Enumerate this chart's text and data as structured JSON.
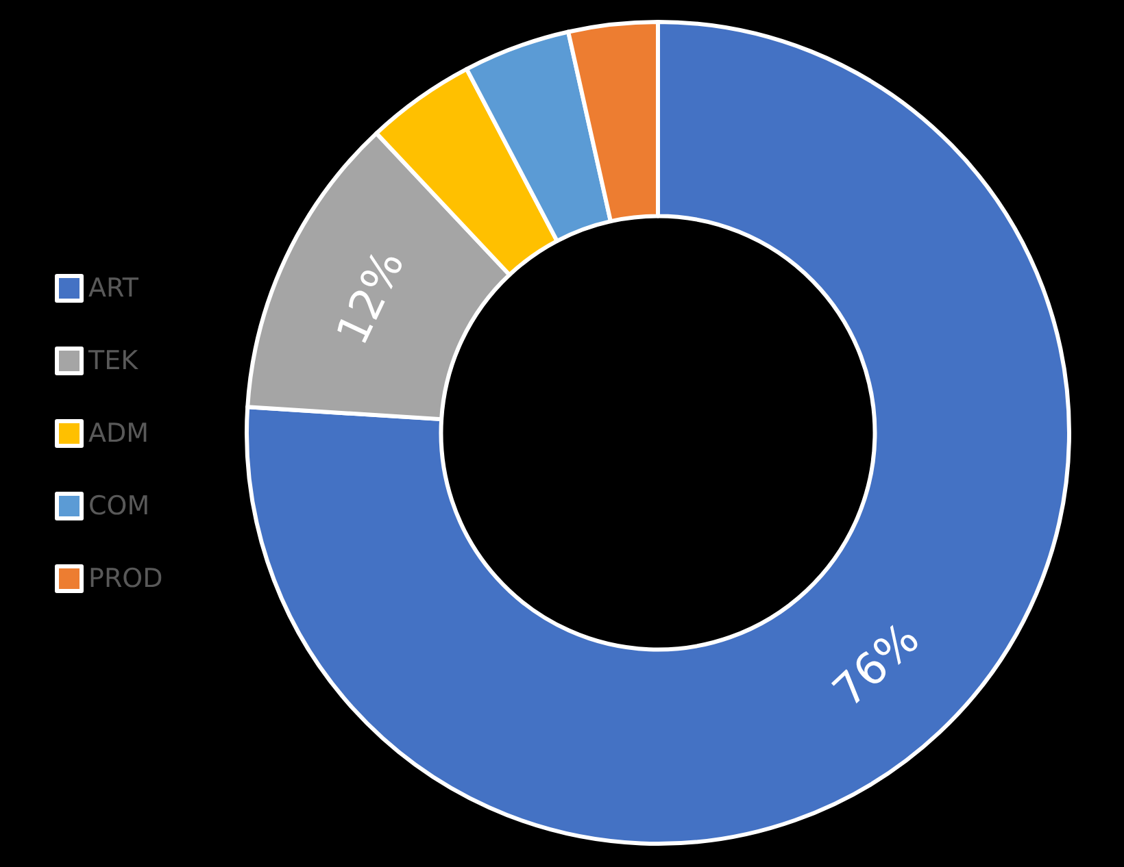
{
  "chart_data": {
    "type": "donut",
    "categories": [
      "ART",
      "TEK",
      "ADM",
      "COM",
      "PROD"
    ],
    "values": [
      76,
      12,
      4.3,
      4.2,
      3.5
    ],
    "colors": [
      "#4472c4",
      "#a5a5a5",
      "#ffc000",
      "#5b9bd5",
      "#ed7d31"
    ],
    "value_labels": [
      "76%",
      "12%",
      null,
      null,
      null
    ],
    "legend": "left"
  }
}
